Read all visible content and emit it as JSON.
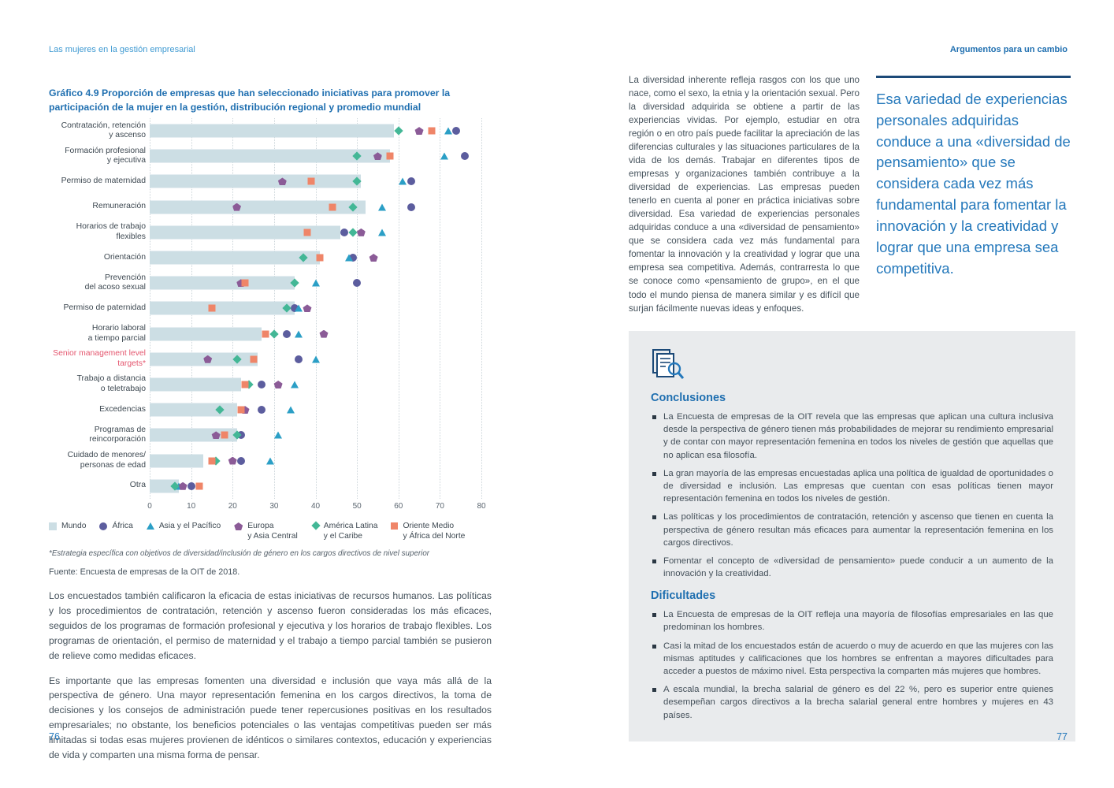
{
  "page_left": {
    "running_header": "Las mujeres en la gestión empresarial",
    "page_number": "76",
    "footnote": "*Estrategia específica con objetivos de diversidad/inclusión de género en los cargos directivos de nivel superior",
    "source": "Fuente: Encuesta de empresas de la OIT de 2018.",
    "paragraphs": [
      "Los encuestados también calificaron la eficacia de estas iniciativas de recursos humanos. Las políticas y los procedimientos de contratación, retención y ascenso fueron consideradas los más eficaces, seguidos de los programas de formación profesional y ejecutiva y los horarios de trabajo flexibles. Los programas de orientación, el permiso de maternidad y el trabajo a tiempo parcial también se pusieron de relieve como medidas eficaces.",
      "Es importante que las empresas fomenten una diversidad e inclusión que vaya más allá de la perspectiva de género. Una mayor representación femenina en los cargos directivos, la toma de decisiones y los consejos de administración puede tener repercusiones positivas en los resultados empresariales; no obstante, los beneficios potenciales o las ventajas competitivas pueden ser más limitadas si todas esas mujeres provienen de idénticos o similares contextos, educación y experiencias de vida y comparten una misma forma de pensar."
    ]
  },
  "chart_data": {
    "type": "bar",
    "subtype": "horizontal bar (world average) with regional scatter markers",
    "title": "Gráfico 4.9 Proporción de empresas que han seleccionado iniciativas para promover la participación de la mujer en la gestión, distribución regional y promedio mundial",
    "xlabel": "",
    "ylabel": "",
    "xlim": [
      0,
      80
    ],
    "x_ticks": [
      0,
      10,
      20,
      30,
      40,
      50,
      60,
      70,
      80
    ],
    "grid": "vertical dotted",
    "legend_position": "bottom",
    "highlight_index": 9,
    "categories": [
      "Contratación, retención\ny ascenso",
      "Formación profesional\ny ejecutiva",
      "Permiso de maternidad",
      "Remuneración",
      "Horarios de trabajo\nflexibles",
      "Orientación",
      "Prevención\ndel acoso sexual",
      "Permiso de paternidad",
      "Horario laboral\na tiempo parcial",
      "Senior management level\ntargets*",
      "Trabajo a distancia\no teletrabajo",
      "Excedencias",
      "Programas de\nreincorporación",
      "Cuidado de menores/\npersonas de edad",
      "Otra"
    ],
    "bar_series": {
      "name": "Mundo",
      "color": "#ccdee4",
      "values": [
        59,
        58,
        51,
        52,
        46,
        41,
        35,
        35,
        27,
        26,
        22,
        21,
        21,
        13,
        7
      ]
    },
    "series": [
      {
        "name": "África",
        "marker": "circle",
        "color": "#5c5d9e",
        "values": [
          74,
          76,
          63,
          63,
          47,
          49,
          50,
          35,
          33,
          36,
          27,
          27,
          22,
          22,
          10
        ]
      },
      {
        "name": "Asia y el Pacífico",
        "marker": "triangle",
        "color": "#2b9fc6",
        "values": [
          72,
          71,
          61,
          56,
          56,
          48,
          40,
          36,
          36,
          40,
          35,
          34,
          31,
          29,
          7
        ]
      },
      {
        "name": "Europa y Asia Central",
        "marker": "pentagon",
        "color": "#8b5b97",
        "values": [
          65,
          55,
          32,
          21,
          51,
          54,
          22,
          38,
          42,
          14,
          31,
          23,
          16,
          20,
          8
        ]
      },
      {
        "name": "América Latina y el Caribe",
        "marker": "diamond",
        "color": "#43b796",
        "values": [
          60,
          50,
          50,
          49,
          49,
          37,
          35,
          33,
          30,
          21,
          24,
          17,
          21,
          16,
          6
        ]
      },
      {
        "name": "Oriente Medio y África del Norte",
        "marker": "square",
        "color": "#ef8568",
        "values": [
          68,
          58,
          39,
          44,
          38,
          41,
          23,
          15,
          28,
          25,
          23,
          22,
          18,
          15,
          12
        ]
      }
    ],
    "legend": [
      {
        "label": "Mundo",
        "marker": "bar",
        "color": "#ccdee4"
      },
      {
        "label": "África",
        "marker": "circle",
        "color": "#5c5d9e"
      },
      {
        "label": "Asia y el Pacífico",
        "marker": "triangle",
        "color": "#2b9fc6"
      },
      {
        "label": "Europa\ny Asia Central",
        "marker": "pentagon",
        "color": "#8b5b97"
      },
      {
        "label": "América Latina\ny el Caribe",
        "marker": "diamond",
        "color": "#43b796"
      },
      {
        "label": "Oriente Medio\ny África del Norte",
        "marker": "square",
        "color": "#ef8568"
      }
    ]
  },
  "page_right": {
    "running_header": "Argumentos para un cambio",
    "page_number": "77",
    "paragraph": "La diversidad inherente refleja rasgos con los que uno nace, como el sexo, la etnia y la orientación sexual. Pero la diversidad adquirida se obtiene a partir de las experiencias vividas. Por ejemplo, estudiar en otra región o en otro país puede facilitar la apreciación de las diferencias culturales y las situaciones particulares de la vida de los demás. Trabajar en diferentes tipos de empresas y organizaciones también contribuye a la diversidad de experiencias. Las empresas pueden tenerlo en cuenta al poner en práctica iniciativas sobre diversidad. Esa variedad de experiencias personales adquiridas conduce a una «diversidad de pensamiento» que se considera cada vez más fundamental para fomentar la innovación y la creatividad y lograr que una empresa sea competitiva. Además, contrarresta lo que se conoce como «pensamiento de grupo», en el que todo el mundo piensa de manera similar y es difícil que surjan fácilmente nuevas ideas y enfoques.",
    "pull_quote": "Esa variedad de experiencias personales adquiridas conduce a una «diversidad de pensamiento» que se considera cada vez más fundamental para fomentar la innovación y la creatividad y lograr que una empresa sea competitiva.",
    "box": {
      "conclusions_title": "Conclusiones",
      "conclusions": [
        "La Encuesta de empresas de la OIT revela que las empresas que aplican una cultura inclusiva desde la perspectiva de género tienen más probabilidades de mejorar su rendimiento empresarial y de contar con mayor representación femenina en todos los niveles de gestión que aquellas que no aplican esa filosofía.",
        "La gran mayoría de las empresas encuestadas aplica una política de igualdad de oportunidades o de diversidad e inclusión. Las empresas que cuentan con esas políticas tienen mayor representación femenina en todos los niveles de gestión.",
        "Las políticas y los procedimientos de contratación, retención y ascenso que tienen en cuenta la perspectiva de género resultan más eficaces para aumentar la representación femenina en los cargos directivos.",
        "Fomentar el concepto de «diversidad de pensamiento» puede conducir a un aumento de la innovación y la creatividad."
      ],
      "difficulties_title": "Dificultades",
      "difficulties": [
        "La Encuesta de empresas de la OIT refleja una mayoría de filosofías empresariales en las que predominan los hombres.",
        "Casi la mitad de los encuestados están de acuerdo o muy de acuerdo en que las mujeres con las mismas aptitudes y calificaciones que los hombres se enfrentan a mayores dificultades para acceder a puestos de máximo nivel. Esta perspectiva la comparten más mujeres que hombres.",
        "A escala mundial, la brecha salarial de género es del 22 %, pero es superior entre quienes desempeñan cargos directivos a la brecha salarial general entre hombres y mujeres en 43 países."
      ]
    }
  }
}
